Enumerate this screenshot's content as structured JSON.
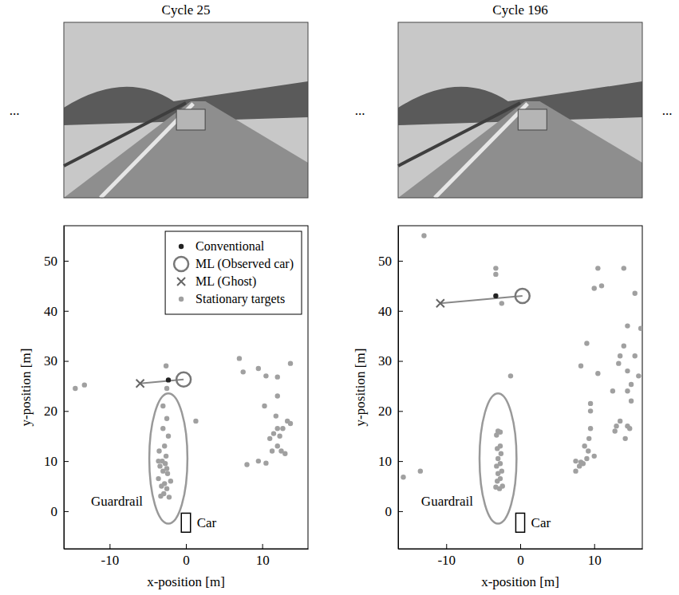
{
  "ellipsis": "...",
  "chart_data": [
    {
      "type": "scatter",
      "title": "Cycle 25",
      "x_label": "x-position [m]",
      "y_label": "y-position [m]",
      "xlim": [
        -16,
        16
      ],
      "ylim": [
        -7.5,
        57
      ],
      "xticks": [
        -10,
        0,
        10
      ],
      "yticks": [
        0,
        10,
        20,
        30,
        40,
        50
      ],
      "grid": false,
      "legend": "upper right",
      "guardrail": {
        "label": "Guardrail",
        "cx": -2.3,
        "cy": 10.5,
        "rx": 2.5,
        "ry": 13
      },
      "car": {
        "label": "Car",
        "x": [
          -0.6,
          0.6
        ],
        "y": [
          -4.2,
          -0.4
        ]
      },
      "series": [
        {
          "name": "Conventional",
          "color": "#222222",
          "marker": "circle",
          "x": [
            -2.3
          ],
          "y": [
            26.2
          ]
        },
        {
          "name": "ML (Observed car)",
          "color": "#777777",
          "marker": "circle-open",
          "x": [
            -0.3
          ],
          "y": [
            26.3
          ]
        },
        {
          "name": "ML (Ghost)",
          "color": "#666666",
          "marker": "x",
          "x": [
            -6
          ],
          "y": [
            25.5
          ]
        },
        {
          "name": "Stationary targets",
          "color": "#a0a0a0",
          "marker": "circle",
          "x": [
            -14.5,
            -13.3,
            -2.6,
            -2.5,
            1.3,
            -3,
            -2.5,
            -3,
            -2.3,
            -2.8,
            -3.5,
            -2.6,
            -3.1,
            -2.7,
            -3.4,
            -2.5,
            -3,
            -2.4,
            -3.6,
            -2.8,
            -3.2,
            -2.5,
            -2.9,
            -3.3,
            -2.2,
            -3.6,
            -2,
            7,
            7.5,
            9.5,
            10.5,
            12,
            13.7,
            12,
            10.3,
            13.3,
            11.8,
            13.7,
            12,
            12.7,
            11.5,
            12.3,
            11,
            12,
            11.3,
            12.5,
            13,
            9.5,
            8,
            10.5
          ],
          "y": [
            24.5,
            25.2,
            29,
            24.5,
            18,
            21,
            18.5,
            16.5,
            15,
            13,
            12,
            11,
            10,
            9.5,
            9,
            8.5,
            8,
            7.5,
            6.5,
            5.5,
            5,
            4.5,
            3.5,
            3,
            2.8,
            10,
            6,
            30.5,
            27.8,
            28.5,
            27,
            26.8,
            29.5,
            23,
            21,
            18,
            19,
            17.5,
            16.5,
            16.5,
            15.5,
            15,
            14.5,
            13,
            12,
            12,
            11.5,
            10,
            9.3,
            9.6
          ]
        }
      ]
    },
    {
      "type": "scatter",
      "title": "Cycle 196",
      "x_label": "x-position [m]",
      "y_label": "y-position [m]",
      "xlim": [
        -16.5,
        16.5
      ],
      "ylim": [
        -7.5,
        57
      ],
      "xticks": [
        -10,
        0,
        10
      ],
      "yticks": [
        0,
        10,
        20,
        30,
        40,
        50
      ],
      "grid": false,
      "guardrail": {
        "label": "Guardrail",
        "cx": -3,
        "cy": 10.5,
        "rx": 2.5,
        "ry": 13
      },
      "car": {
        "label": "Car",
        "x": [
          -0.6,
          0.6
        ],
        "y": [
          -4.2,
          -0.4
        ]
      },
      "series": [
        {
          "name": "Conventional",
          "color": "#222222",
          "marker": "circle",
          "x": [
            -3.3
          ],
          "y": [
            43
          ]
        },
        {
          "name": "ML (Observed car)",
          "color": "#777777",
          "marker": "circle-open",
          "x": [
            0.3
          ],
          "y": [
            43
          ]
        },
        {
          "name": "ML (Ghost)",
          "color": "#666666",
          "marker": "x",
          "x": [
            -10.8
          ],
          "y": [
            41.5
          ]
        },
        {
          "name": "Stationary targets",
          "color": "#a0a0a0",
          "marker": "circle",
          "x": [
            -13,
            -15.8,
            -13.5,
            -3.3,
            -3.3,
            -2.5,
            -1.3,
            -3,
            -2.7,
            -3.2,
            -2.7,
            -3.1,
            -2.6,
            -3,
            -2.7,
            -3.2,
            -2.5,
            -3,
            -2.7,
            -3.1,
            -2.4,
            -3.3,
            -2.8,
            10.5,
            14,
            15.5,
            10,
            14.5,
            16.3,
            14,
            15.5,
            9,
            13.5,
            13.3,
            8.2,
            14.5,
            10.5,
            16,
            15,
            14.5,
            12.5,
            9.5,
            9.5,
            15,
            13.5,
            14.5,
            14.8,
            13,
            12.8,
            14.2,
            9.5,
            9.3,
            8.7,
            9.2,
            10,
            7.5,
            8.2,
            9,
            7.5,
            8,
            8.5,
            11
          ],
          "y": [
            55,
            6.8,
            8,
            48.5,
            47.3,
            41.5,
            27,
            16,
            15.8,
            15.2,
            13,
            12.5,
            11.5,
            10.5,
            9.5,
            9,
            8,
            7.5,
            6.5,
            6,
            5,
            4.8,
            4.5,
            48.5,
            48.5,
            43.5,
            44.5,
            37,
            36.5,
            33,
            31,
            33.5,
            31,
            29.5,
            29,
            28,
            27.5,
            27,
            25.3,
            24,
            24,
            21.5,
            20,
            22,
            18,
            17,
            16.5,
            17,
            16,
            14.5,
            16.5,
            14.5,
            13,
            12,
            11,
            10,
            9.8,
            10.5,
            8,
            9,
            9.5,
            45
          ]
        }
      ]
    }
  ]
}
